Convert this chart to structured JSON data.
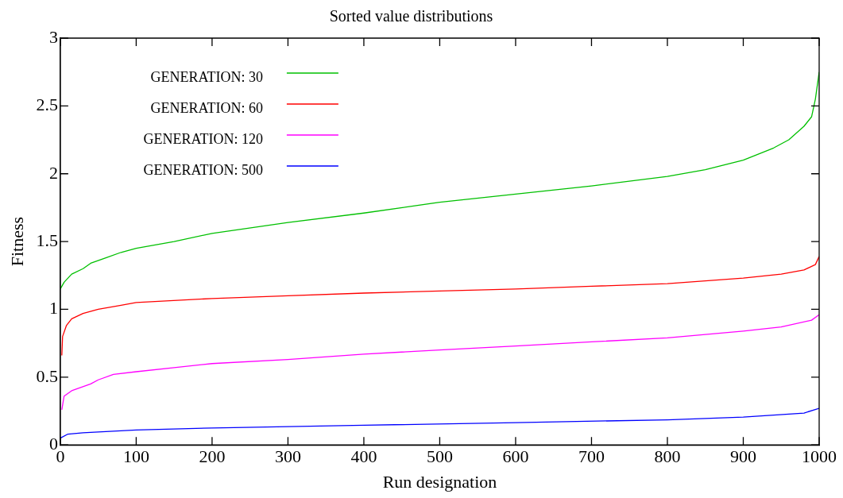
{
  "chart_data": {
    "type": "line",
    "title": "Sorted value distributions",
    "xlabel": "Run designation",
    "ylabel": "Fitness",
    "xlim": [
      0,
      1000
    ],
    "xticks": [
      0,
      100,
      200,
      300,
      400,
      500,
      600,
      700,
      800,
      900,
      1000
    ],
    "ylim": [
      0,
      3
    ],
    "yticks": [
      0,
      0.5,
      1,
      1.5,
      2,
      2.5,
      3
    ],
    "grid": false,
    "legend": "top left",
    "marker": "none",
    "line_style": "solid",
    "series": [
      {
        "name": "GENERATION: 30",
        "color": "#00c000",
        "x": [
          0,
          5,
          15,
          30,
          40,
          60,
          80,
          100,
          150,
          200,
          300,
          400,
          500,
          600,
          700,
          800,
          850,
          900,
          940,
          960,
          980,
          990,
          995,
          1000
        ],
        "values": [
          1.15,
          1.2,
          1.26,
          1.3,
          1.34,
          1.38,
          1.42,
          1.45,
          1.5,
          1.56,
          1.64,
          1.71,
          1.79,
          1.85,
          1.91,
          1.98,
          2.03,
          2.1,
          2.19,
          2.25,
          2.35,
          2.42,
          2.55,
          2.75
        ]
      },
      {
        "name": "GENERATION: 60",
        "color": "#ff0000",
        "x": [
          2,
          3,
          8,
          15,
          30,
          50,
          80,
          100,
          200,
          300,
          400,
          500,
          600,
          700,
          800,
          900,
          950,
          980,
          995,
          1000
        ],
        "values": [
          0.66,
          0.8,
          0.88,
          0.93,
          0.97,
          1.0,
          1.03,
          1.05,
          1.08,
          1.1,
          1.12,
          1.135,
          1.15,
          1.17,
          1.19,
          1.23,
          1.26,
          1.29,
          1.33,
          1.39
        ]
      },
      {
        "name": "GENERATION: 120",
        "color": "#ff00ff",
        "x": [
          2,
          5,
          15,
          40,
          50,
          70,
          100,
          150,
          200,
          300,
          400,
          500,
          600,
          700,
          800,
          900,
          950,
          990,
          1000
        ],
        "values": [
          0.26,
          0.36,
          0.4,
          0.45,
          0.48,
          0.52,
          0.54,
          0.57,
          0.6,
          0.63,
          0.67,
          0.7,
          0.73,
          0.76,
          0.79,
          0.84,
          0.87,
          0.92,
          0.96
        ]
      },
      {
        "name": "GENERATION: 500",
        "color": "#0000ff",
        "x": [
          0,
          10,
          30,
          100,
          200,
          400,
          600,
          800,
          900,
          980,
          1000
        ],
        "values": [
          0.05,
          0.08,
          0.09,
          0.11,
          0.125,
          0.145,
          0.165,
          0.185,
          0.205,
          0.235,
          0.27
        ]
      }
    ]
  }
}
